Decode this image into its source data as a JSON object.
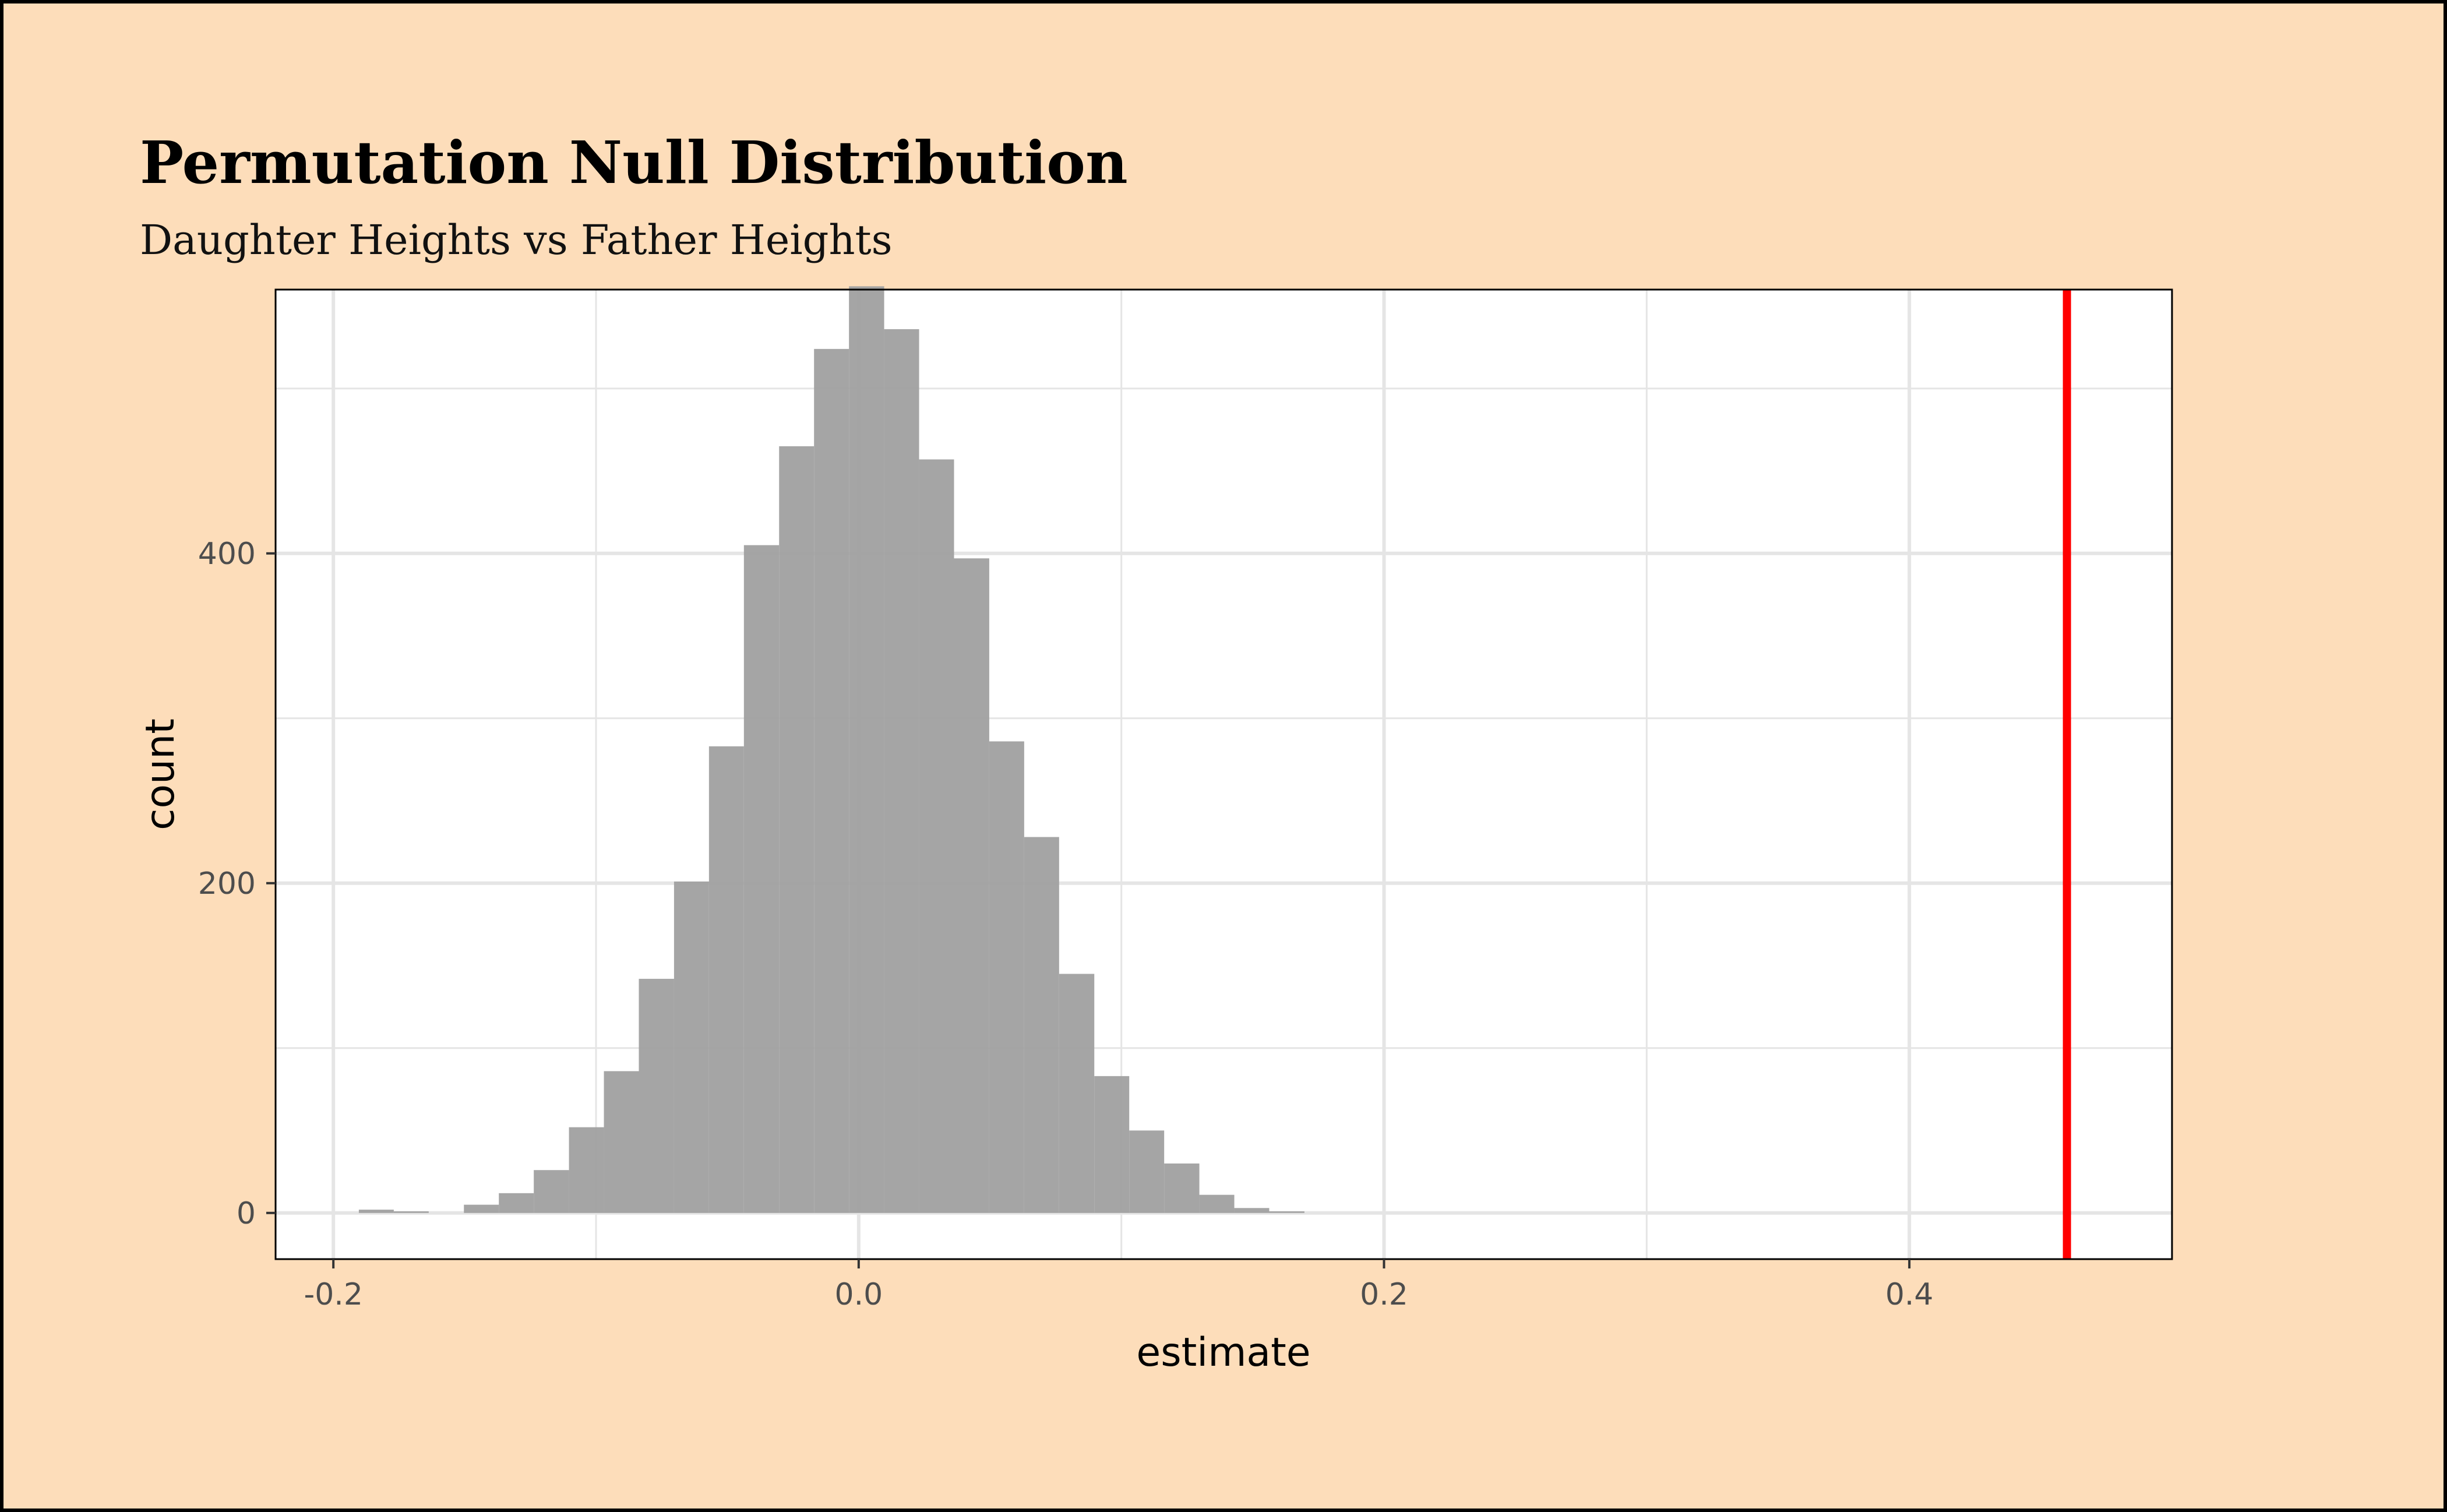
{
  "chart_data": {
    "type": "bar",
    "subtype": "histogram",
    "title": "Permutation Null Distribution",
    "subtitle": "Daughter Heights vs Father Heights",
    "xlabel": "estimate",
    "ylabel": "count",
    "xlim": [
      -0.222,
      0.5
    ],
    "ylim": [
      -28,
      560
    ],
    "x_ticks": [
      -0.2,
      0.0,
      0.2,
      0.4
    ],
    "x_tick_labels": [
      "-0.2",
      "0.0",
      "0.2",
      "0.4"
    ],
    "y_ticks": [
      0,
      200,
      400
    ],
    "y_tick_labels": [
      "0",
      "200",
      "400"
    ],
    "x_minor_ticks": [
      -0.1,
      0.1,
      0.3
    ],
    "y_minor_ticks": [
      100,
      300,
      500
    ],
    "bin_width": 0.01333,
    "bins": [
      {
        "x0": -0.1903,
        "x1": -0.177,
        "count": 2
      },
      {
        "x0": -0.177,
        "x1": -0.1637,
        "count": 1
      },
      {
        "x0": -0.1503,
        "x1": -0.137,
        "count": 5
      },
      {
        "x0": -0.137,
        "x1": -0.1237,
        "count": 12
      },
      {
        "x0": -0.1237,
        "x1": -0.1103,
        "count": 26
      },
      {
        "x0": -0.1103,
        "x1": -0.097,
        "count": 52
      },
      {
        "x0": -0.097,
        "x1": -0.0837,
        "count": 86
      },
      {
        "x0": -0.0837,
        "x1": -0.0703,
        "count": 142
      },
      {
        "x0": -0.0703,
        "x1": -0.057,
        "count": 201
      },
      {
        "x0": -0.057,
        "x1": -0.0437,
        "count": 283
      },
      {
        "x0": -0.0437,
        "x1": -0.0303,
        "count": 405
      },
      {
        "x0": -0.0303,
        "x1": -0.017,
        "count": 465
      },
      {
        "x0": -0.017,
        "x1": -0.0037,
        "count": 524
      },
      {
        "x0": -0.0037,
        "x1": 0.0097,
        "count": 562
      },
      {
        "x0": 0.0097,
        "x1": 0.023,
        "count": 536
      },
      {
        "x0": 0.023,
        "x1": 0.0363,
        "count": 457
      },
      {
        "x0": 0.0363,
        "x1": 0.0497,
        "count": 397
      },
      {
        "x0": 0.0497,
        "x1": 0.063,
        "count": 286
      },
      {
        "x0": 0.063,
        "x1": 0.0763,
        "count": 228
      },
      {
        "x0": 0.0763,
        "x1": 0.0897,
        "count": 145
      },
      {
        "x0": 0.0897,
        "x1": 0.103,
        "count": 83
      },
      {
        "x0": 0.103,
        "x1": 0.1163,
        "count": 50
      },
      {
        "x0": 0.1163,
        "x1": 0.1297,
        "count": 30
      },
      {
        "x0": 0.1297,
        "x1": 0.143,
        "count": 11
      },
      {
        "x0": 0.143,
        "x1": 0.1563,
        "count": 3
      },
      {
        "x0": 0.1563,
        "x1": 0.1697,
        "count": 1
      }
    ],
    "observed_estimate": 0.46,
    "grid": true,
    "colors": {
      "bars": "#A0A0A0",
      "observed_line": "#FF0000",
      "panel": "#FFFFFF",
      "background": "#FDDDBA",
      "grid": "#E5E5E5"
    }
  }
}
